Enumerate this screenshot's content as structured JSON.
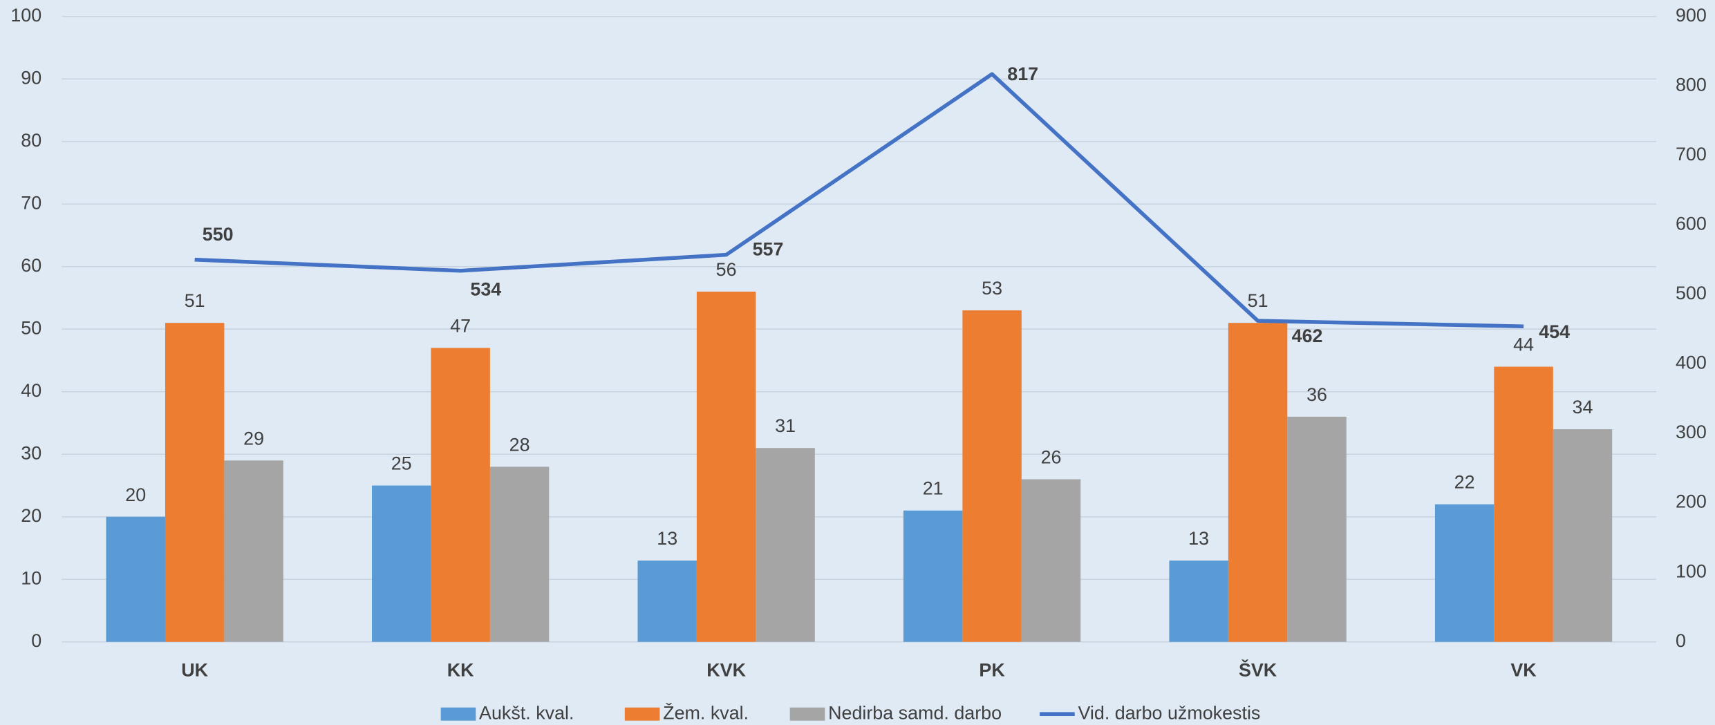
{
  "chart_data": {
    "type": "bar",
    "categories": [
      "UK",
      "KK",
      "KVK",
      "PK",
      "ŠVK",
      "VK"
    ],
    "series": [
      {
        "name": "Aukšt. kval.",
        "color": "#5b9bd5",
        "values": [
          20,
          25,
          13,
          21,
          13,
          22
        ]
      },
      {
        "name": "Žem. kval.",
        "color": "#ed7d31",
        "values": [
          51,
          47,
          56,
          53,
          51,
          44
        ]
      },
      {
        "name": "Nedirba samd. darbo",
        "color": "#a5a5a5",
        "values": [
          29,
          28,
          31,
          26,
          36,
          34
        ]
      },
      {
        "name": "Vid. darbo užmokestis",
        "color": "#4472c4",
        "type": "line",
        "axis": "y2",
        "values": [
          550,
          534,
          557,
          817,
          462,
          454
        ]
      }
    ],
    "ylim": [
      0,
      100
    ],
    "yticks": [
      0,
      10,
      20,
      30,
      40,
      50,
      60,
      70,
      80,
      90,
      100
    ],
    "y2lim": [
      0,
      900
    ],
    "y2ticks": [
      0,
      100,
      200,
      300,
      400,
      500,
      600,
      700,
      800,
      900
    ],
    "grid": true,
    "legend": "bottom"
  }
}
